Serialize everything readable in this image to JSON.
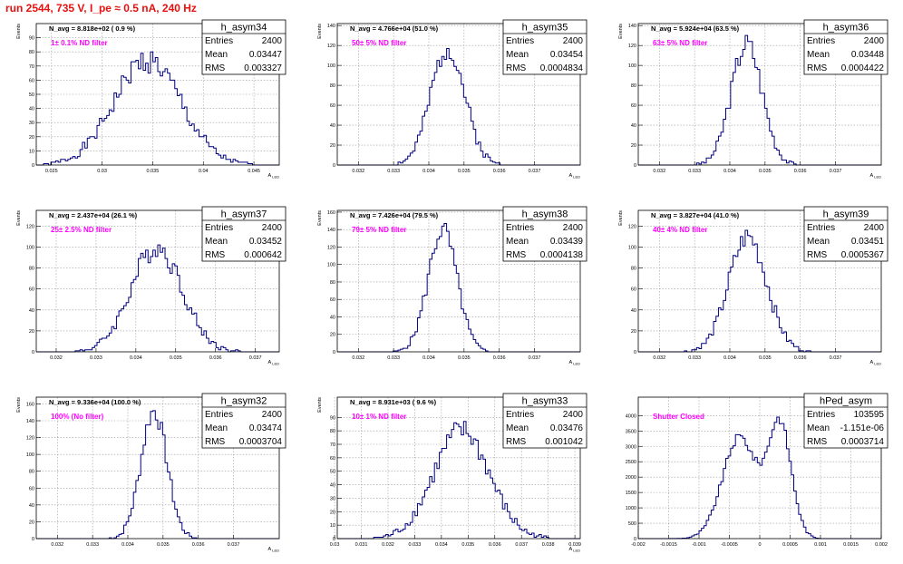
{
  "page": {
    "title": "run 2544,   735 V, I_pe ≈ 0.5 nA, 240 Hz",
    "title_color": "#e8110f",
    "line_color": "#00007f",
    "label_color": "#ff00ff"
  },
  "chart_data": [
    {
      "type": "histogram",
      "name": "h_asym34",
      "ylabel": "Events",
      "xlabel": "A_LED",
      "navg": "N_avg = 8.818e+02 ( 0.9 %)",
      "filter": "1± 0.1% ND filter",
      "stats": {
        "entries": "2400",
        "mean": "0.03447",
        "rms": "0.003327"
      },
      "xlim": [
        0.0235,
        0.0475
      ],
      "ylim": [
        0,
        100
      ],
      "xticks": [
        0.025,
        0.03,
        0.035,
        0.04,
        0.045
      ],
      "xtick_labels": [
        "0.025",
        "0.03",
        "0.035",
        "0.04",
        "0.045"
      ],
      "yticks": [
        0,
        10,
        20,
        30,
        40,
        50,
        60,
        70,
        80,
        90
      ],
      "ytick_labels": [
        "0",
        "10",
        "20",
        "30",
        "40",
        "50",
        "60",
        "70",
        "80",
        "90"
      ],
      "gauss": {
        "mu": 0.03447,
        "sigma": 0.0033,
        "peak": 74,
        "noise": 9,
        "seed": 1
      }
    },
    {
      "type": "histogram",
      "name": "h_asym35",
      "ylabel": "Events",
      "xlabel": "A_LED",
      "navg": "N_avg = 4.766e+04 (51.0 %)",
      "filter": "50± 5% ND filter",
      "stats": {
        "entries": "2400",
        "mean": "0.03454",
        "rms": "0.0004834"
      },
      "xlim": [
        0.0314,
        0.0383
      ],
      "ylim": [
        0,
        142
      ],
      "xticks": [
        0.032,
        0.033,
        0.034,
        0.035,
        0.036,
        0.037
      ],
      "xtick_labels": [
        "0.032",
        "0.033",
        "0.034",
        "0.035",
        "0.036",
        "0.037"
      ],
      "yticks": [
        0,
        20,
        40,
        60,
        80,
        100,
        120,
        140
      ],
      "ytick_labels": [
        "0",
        "20",
        "40",
        "60",
        "80",
        "100",
        "120",
        "140"
      ],
      "gauss": {
        "mu": 0.03454,
        "sigma": 0.00048,
        "peak": 118,
        "noise": 12,
        "seed": 2
      }
    },
    {
      "type": "histogram",
      "name": "h_asym36",
      "ylabel": "Events",
      "xlabel": "A_LED",
      "navg": "N_avg = 5.924e+04 (63.5 %)",
      "filter": "63± 5% ND filter",
      "stats": {
        "entries": "2400",
        "mean": "0.03448",
        "rms": "0.0004422"
      },
      "xlim": [
        0.0314,
        0.0383
      ],
      "ylim": [
        0,
        142
      ],
      "xticks": [
        0.032,
        0.033,
        0.034,
        0.035,
        0.036,
        0.037
      ],
      "xtick_labels": [
        "0.032",
        "0.033",
        "0.034",
        "0.035",
        "0.036",
        "0.037"
      ],
      "yticks": [
        0,
        20,
        40,
        60,
        80,
        100,
        120,
        140
      ],
      "ytick_labels": [
        "0",
        "20",
        "40",
        "60",
        "80",
        "100",
        "120",
        "140"
      ],
      "gauss": {
        "mu": 0.03448,
        "sigma": 0.00044,
        "peak": 122,
        "noise": 12,
        "seed": 3
      }
    },
    {
      "type": "histogram",
      "name": "h_asym37",
      "ylabel": "Events",
      "xlabel": "A_LED",
      "navg": "N_avg = 2.437e+04 (26.1 %)",
      "filter": "25± 2.5% ND filter",
      "stats": {
        "entries": "2400",
        "mean": "0.03452",
        "rms": "0.000642"
      },
      "xlim": [
        0.0315,
        0.0376
      ],
      "ylim": [
        0,
        135
      ],
      "xticks": [
        0.032,
        0.033,
        0.034,
        0.035,
        0.036,
        0.037
      ],
      "xtick_labels": [
        "0.032",
        "0.033",
        "0.034",
        "0.035",
        "0.036",
        "0.037"
      ],
      "yticks": [
        0,
        20,
        40,
        60,
        80,
        100,
        120
      ],
      "ytick_labels": [
        "0",
        "20",
        "40",
        "60",
        "80",
        "100",
        "120"
      ],
      "gauss": {
        "mu": 0.03452,
        "sigma": 0.00064,
        "peak": 100,
        "noise": 11,
        "seed": 4
      }
    },
    {
      "type": "histogram",
      "name": "h_asym38",
      "ylabel": "Events",
      "xlabel": "A_LED",
      "navg": "N_avg = 7.426e+04 (79.5 %)",
      "filter": "79± 5% ND filter",
      "stats": {
        "entries": "2400",
        "mean": "0.03439",
        "rms": "0.0004138"
      },
      "xlim": [
        0.0314,
        0.0383
      ],
      "ylim": [
        0,
        162
      ],
      "xticks": [
        0.032,
        0.033,
        0.034,
        0.035,
        0.036,
        0.037
      ],
      "xtick_labels": [
        "0.032",
        "0.033",
        "0.034",
        "0.035",
        "0.036",
        "0.037"
      ],
      "yticks": [
        0,
        20,
        40,
        60,
        80,
        100,
        120,
        140,
        160
      ],
      "ytick_labels": [
        "0",
        "20",
        "40",
        "60",
        "80",
        "100",
        "120",
        "140",
        "160"
      ],
      "gauss": {
        "mu": 0.03439,
        "sigma": 0.00041,
        "peak": 140,
        "noise": 12,
        "seed": 5
      }
    },
    {
      "type": "histogram",
      "name": "h_asym39",
      "ylabel": "Events",
      "xlabel": "A_LED",
      "navg": "N_avg = 3.827e+04 (41.0 %)",
      "filter": "40± 4% ND filter",
      "stats": {
        "entries": "2400",
        "mean": "0.03451",
        "rms": "0.0005367"
      },
      "xlim": [
        0.0314,
        0.0383
      ],
      "ylim": [
        0,
        135
      ],
      "xticks": [
        0.032,
        0.033,
        0.034,
        0.035,
        0.036,
        0.037
      ],
      "xtick_labels": [
        "0.032",
        "0.033",
        "0.034",
        "0.035",
        "0.036",
        "0.037"
      ],
      "yticks": [
        0,
        20,
        40,
        60,
        80,
        100,
        120
      ],
      "ytick_labels": [
        "0",
        "20",
        "40",
        "60",
        "80",
        "100",
        "120"
      ],
      "gauss": {
        "mu": 0.03451,
        "sigma": 0.00054,
        "peak": 110,
        "noise": 11,
        "seed": 6
      }
    },
    {
      "type": "histogram",
      "name": "h_asym32",
      "ylabel": "Events",
      "xlabel": "A_LED",
      "navg": "N_avg = 9.336e+04 (100.0 %)",
      "filter": "100% (No filter)",
      "stats": {
        "entries": "2400",
        "mean": "0.03474",
        "rms": "0.0003704"
      },
      "xlim": [
        0.0314,
        0.0383
      ],
      "ylim": [
        0,
        168
      ],
      "xticks": [
        0.032,
        0.033,
        0.034,
        0.035,
        0.036,
        0.037
      ],
      "xtick_labels": [
        "0.032",
        "0.033",
        "0.034",
        "0.035",
        "0.036",
        "0.037"
      ],
      "yticks": [
        0,
        20,
        40,
        60,
        80,
        100,
        120,
        140,
        160
      ],
      "ytick_labels": [
        "0",
        "20",
        "40",
        "60",
        "80",
        "100",
        "120",
        "140",
        "160"
      ],
      "gauss": {
        "mu": 0.03474,
        "sigma": 0.00037,
        "peak": 152,
        "noise": 12,
        "seed": 7
      }
    },
    {
      "type": "histogram",
      "name": "h_asym33",
      "ylabel": "Events",
      "xlabel": "A_LED",
      "navg": "N_avg = 8.931e+03 ( 9.6 %)",
      "filter": "10± 1% ND filter",
      "stats": {
        "entries": "2400",
        "mean": "0.03476",
        "rms": "0.001042"
      },
      "xlim": [
        0.0301,
        0.0392
      ],
      "ylim": [
        0,
        105
      ],
      "xticks": [
        0.03,
        0.031,
        0.032,
        0.033,
        0.034,
        0.035,
        0.036,
        0.037,
        0.038,
        0.039
      ],
      "xtick_labels": [
        "0.03",
        "0.031",
        "0.032",
        "0.033",
        "0.034",
        "0.035",
        "0.036",
        "0.037",
        "0.038",
        "0.039"
      ],
      "yticks": [
        0,
        10,
        20,
        30,
        40,
        50,
        60,
        70,
        80,
        90
      ],
      "ytick_labels": [
        "0",
        "10",
        "20",
        "30",
        "40",
        "50",
        "60",
        "70",
        "80",
        "90"
      ],
      "gauss": {
        "mu": 0.03476,
        "sigma": 0.00104,
        "peak": 80,
        "noise": 9,
        "seed": 8
      }
    },
    {
      "type": "histogram",
      "name": "hPed_asym",
      "ylabel": "",
      "xlabel": "",
      "navg": "",
      "filter": "Shutter Closed",
      "stats": {
        "entries": "103595",
        "mean": "-1.151e-06",
        "rms": "0.0003714"
      },
      "xlim": [
        -0.002,
        0.002
      ],
      "ylim": [
        0,
        4600
      ],
      "xticks": [
        -0.002,
        -0.0015,
        -0.001,
        -0.0005,
        0,
        0.0005,
        0.001,
        0.0015,
        0.002
      ],
      "xtick_labels": [
        "-0.002",
        "-0.0015",
        "-0.001",
        "-0.0005",
        "0",
        "0.0005",
        "0.001",
        "0.0015",
        "0.002"
      ],
      "yticks": [
        0,
        500,
        1000,
        1500,
        2000,
        2500,
        3000,
        3500,
        4000
      ],
      "ytick_labels": [
        "0",
        "500",
        "1000",
        "1500",
        "2000",
        "2500",
        "3000",
        "3500",
        "4000"
      ],
      "double": [
        {
          "mu": -0.00033,
          "sigma": 0.00028,
          "peak": 3300
        },
        {
          "mu": 0.00033,
          "sigma": 0.00019,
          "peak": 3700
        }
      ],
      "noise": 140,
      "seed": 9
    }
  ]
}
